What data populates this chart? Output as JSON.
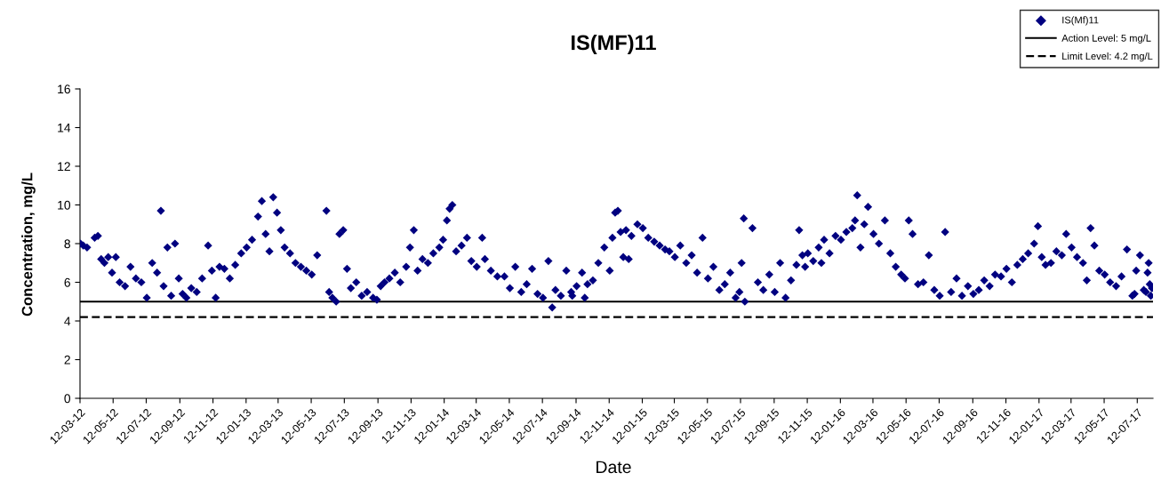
{
  "chart_data": {
    "type": "scatter",
    "title": "IS(MF)11",
    "xlabel": "Date",
    "ylabel": "Concentration, mg/L",
    "marker": "diamond",
    "grid": false,
    "legend": "top right",
    "xlim": [
      "2012-03-12",
      "2017-08-10"
    ],
    "ylim": [
      0,
      16
    ],
    "yticks": [
      0,
      2,
      4,
      6,
      8,
      10,
      12,
      14,
      16
    ],
    "xticks": [
      {
        "value": "2012-03-12",
        "label": "12-03-12"
      },
      {
        "value": "2012-05-12",
        "label": "12-05-12"
      },
      {
        "value": "2012-07-12",
        "label": "12-07-12"
      },
      {
        "value": "2012-09-12",
        "label": "12-09-12"
      },
      {
        "value": "2012-11-12",
        "label": "12-11-12"
      },
      {
        "value": "2013-01-12",
        "label": "12-01-13"
      },
      {
        "value": "2013-03-12",
        "label": "12-03-13"
      },
      {
        "value": "2013-05-12",
        "label": "12-05-13"
      },
      {
        "value": "2013-07-12",
        "label": "12-07-13"
      },
      {
        "value": "2013-09-12",
        "label": "12-09-13"
      },
      {
        "value": "2013-11-12",
        "label": "12-11-13"
      },
      {
        "value": "2014-01-12",
        "label": "12-01-14"
      },
      {
        "value": "2014-03-12",
        "label": "12-03-14"
      },
      {
        "value": "2014-05-12",
        "label": "12-05-14"
      },
      {
        "value": "2014-07-12",
        "label": "12-07-14"
      },
      {
        "value": "2014-09-12",
        "label": "12-09-14"
      },
      {
        "value": "2014-11-12",
        "label": "12-11-14"
      },
      {
        "value": "2015-01-12",
        "label": "12-01-15"
      },
      {
        "value": "2015-03-12",
        "label": "12-03-15"
      },
      {
        "value": "2015-05-12",
        "label": "12-05-15"
      },
      {
        "value": "2015-07-12",
        "label": "12-07-15"
      },
      {
        "value": "2015-09-12",
        "label": "12-09-15"
      },
      {
        "value": "2015-11-12",
        "label": "12-11-15"
      },
      {
        "value": "2016-01-12",
        "label": "12-01-16"
      },
      {
        "value": "2016-03-12",
        "label": "12-03-16"
      },
      {
        "value": "2016-05-12",
        "label": "12-05-16"
      },
      {
        "value": "2016-07-12",
        "label": "12-07-16"
      },
      {
        "value": "2016-09-12",
        "label": "12-09-16"
      },
      {
        "value": "2016-11-12",
        "label": "12-11-16"
      },
      {
        "value": "2017-01-12",
        "label": "12-01-17"
      },
      {
        "value": "2017-03-12",
        "label": "12-03-17"
      },
      {
        "value": "2017-05-12",
        "label": "12-05-17"
      },
      {
        "value": "2017-07-12",
        "label": "12-07-17"
      }
    ],
    "ref_lines": [
      {
        "axis": "y",
        "value": 5,
        "label": "Action Level: 5 mg/L",
        "color": "#000000",
        "line_style": "solid"
      },
      {
        "axis": "y",
        "value": 4.2,
        "label": "Limit Level: 4.2 mg/L",
        "color": "#000000",
        "line_style": "dashed"
      }
    ],
    "series": [
      {
        "name": "IS(Mf)11",
        "color": "#000080",
        "x": [
          "2012-03-13",
          "2012-03-18",
          "2012-03-25",
          "2012-04-08",
          "2012-04-14",
          "2012-04-20",
          "2012-04-26",
          "2012-05-03",
          "2012-05-10",
          "2012-05-17",
          "2012-05-24",
          "2012-06-03",
          "2012-06-13",
          "2012-06-23",
          "2012-07-03",
          "2012-07-13",
          "2012-07-23",
          "2012-08-01",
          "2012-08-08",
          "2012-08-13",
          "2012-08-20",
          "2012-08-27",
          "2012-09-03",
          "2012-09-10",
          "2012-09-17",
          "2012-09-24",
          "2012-10-03",
          "2012-10-13",
          "2012-10-23",
          "2012-11-03",
          "2012-11-10",
          "2012-11-17",
          "2012-11-24",
          "2012-12-03",
          "2012-12-13",
          "2012-12-23",
          "2013-01-03",
          "2013-01-13",
          "2013-01-23",
          "2013-02-03",
          "2013-02-10",
          "2013-02-17",
          "2013-02-24",
          "2013-03-03",
          "2013-03-10",
          "2013-03-17",
          "2013-03-24",
          "2013-04-03",
          "2013-04-13",
          "2013-04-23",
          "2013-05-03",
          "2013-05-13",
          "2013-05-23",
          "2013-06-09",
          "2013-06-14",
          "2013-06-20",
          "2013-06-27",
          "2013-07-03",
          "2013-07-10",
          "2013-07-17",
          "2013-07-24",
          "2013-08-03",
          "2013-08-13",
          "2013-08-23",
          "2013-09-03",
          "2013-09-10",
          "2013-09-17",
          "2013-09-24",
          "2013-10-03",
          "2013-10-13",
          "2013-10-23",
          "2013-11-03",
          "2013-11-10",
          "2013-11-17",
          "2013-11-24",
          "2013-12-03",
          "2013-12-13",
          "2013-12-23",
          "2014-01-03",
          "2014-01-10",
          "2014-01-17",
          "2014-01-22",
          "2014-01-27",
          "2014-02-03",
          "2014-02-13",
          "2014-02-23",
          "2014-03-03",
          "2014-03-13",
          "2014-03-28",
          "2014-03-23",
          "2014-04-08",
          "2014-04-20",
          "2014-05-03",
          "2014-05-13",
          "2014-05-23",
          "2014-06-03",
          "2014-06-13",
          "2014-06-23",
          "2014-07-03",
          "2014-07-13",
          "2014-07-23",
          "2014-08-05",
          "2014-08-15",
          "2014-08-25",
          "2014-07-30",
          "2014-09-03",
          "2014-09-13",
          "2014-09-05",
          "2014-09-23",
          "2014-09-28",
          "2014-10-03",
          "2014-10-13",
          "2014-10-23",
          "2014-11-03",
          "2014-11-13",
          "2014-11-18",
          "2014-11-23",
          "2014-11-28",
          "2014-12-03",
          "2014-12-08",
          "2014-12-18",
          "2014-12-13",
          "2014-12-23",
          "2015-01-03",
          "2015-01-13",
          "2015-01-23",
          "2015-02-03",
          "2015-02-13",
          "2015-02-23",
          "2015-03-03",
          "2015-03-13",
          "2015-03-23",
          "2015-04-03",
          "2015-04-13",
          "2015-04-23",
          "2015-05-03",
          "2015-05-13",
          "2015-05-23",
          "2015-06-03",
          "2015-06-13",
          "2015-06-23",
          "2015-07-03",
          "2015-07-10",
          "2015-07-14",
          "2015-07-20",
          "2015-07-18",
          "2015-08-03",
          "2015-08-13",
          "2015-08-23",
          "2015-09-03",
          "2015-09-13",
          "2015-09-23",
          "2015-10-03",
          "2015-10-13",
          "2015-10-23",
          "2015-10-28",
          "2015-11-03",
          "2015-11-08",
          "2015-12-08",
          "2015-11-13",
          "2015-11-23",
          "2015-12-03",
          "2015-12-13",
          "2015-12-23",
          "2016-01-03",
          "2016-01-13",
          "2016-01-23",
          "2016-02-03",
          "2016-02-08",
          "2016-02-18",
          "2016-02-25",
          "2016-02-12",
          "2016-03-03",
          "2016-03-13",
          "2016-03-23",
          "2016-04-03",
          "2016-04-13",
          "2016-04-23",
          "2016-05-03",
          "2016-05-10",
          "2016-05-17",
          "2016-05-24",
          "2016-06-03",
          "2016-06-13",
          "2016-06-23",
          "2016-07-03",
          "2016-07-13",
          "2016-07-23",
          "2016-08-03",
          "2016-08-13",
          "2016-08-23",
          "2016-09-03",
          "2016-09-13",
          "2016-09-23",
          "2016-10-03",
          "2016-10-13",
          "2016-10-23",
          "2016-11-03",
          "2016-11-13",
          "2016-11-23",
          "2016-12-03",
          "2016-12-13",
          "2016-12-23",
          "2017-01-03",
          "2017-01-10",
          "2017-01-17",
          "2017-01-24",
          "2017-02-03",
          "2017-02-13",
          "2017-02-23",
          "2017-03-03",
          "2017-03-13",
          "2017-03-23",
          "2017-04-03",
          "2017-04-10",
          "2017-04-17",
          "2017-04-24",
          "2017-05-03",
          "2017-05-13",
          "2017-05-23",
          "2017-06-03",
          "2017-06-13",
          "2017-06-23",
          "2017-07-03",
          "2017-07-07",
          "2017-07-10",
          "2017-07-17",
          "2017-07-24",
          "2017-07-28",
          "2017-07-31",
          "2017-08-02",
          "2017-08-04",
          "2017-08-06",
          "2017-08-08"
        ],
        "values": [
          8.0,
          7.9,
          7.8,
          8.3,
          8.4,
          7.2,
          7.0,
          7.3,
          6.5,
          7.3,
          6.0,
          5.8,
          6.8,
          6.2,
          6.0,
          5.2,
          7.0,
          6.5,
          9.7,
          5.8,
          7.8,
          5.3,
          8.0,
          6.2,
          5.4,
          5.2,
          5.7,
          5.5,
          6.2,
          7.9,
          6.6,
          5.2,
          6.8,
          6.7,
          6.2,
          6.9,
          7.5,
          7.8,
          8.2,
          9.4,
          10.2,
          8.5,
          7.6,
          10.4,
          9.6,
          8.7,
          7.8,
          7.5,
          7.0,
          6.8,
          6.6,
          6.4,
          7.4,
          9.7,
          5.5,
          5.2,
          5.0,
          8.5,
          8.7,
          6.7,
          5.7,
          6.0,
          5.3,
          5.5,
          5.2,
          5.1,
          5.8,
          6.0,
          6.2,
          6.5,
          6.0,
          6.8,
          7.8,
          8.7,
          6.6,
          7.2,
          7.0,
          7.5,
          7.8,
          8.2,
          9.2,
          9.8,
          10.0,
          7.6,
          7.9,
          8.3,
          7.1,
          6.8,
          7.2,
          8.3,
          6.6,
          6.3,
          6.3,
          5.7,
          6.8,
          5.5,
          5.9,
          6.7,
          5.4,
          5.2,
          7.1,
          5.6,
          5.3,
          6.6,
          4.7,
          5.5,
          5.8,
          5.3,
          6.5,
          5.2,
          5.9,
          6.1,
          7.0,
          7.8,
          6.6,
          8.3,
          9.6,
          9.7,
          8.6,
          7.3,
          7.2,
          8.7,
          8.4,
          9.0,
          8.8,
          8.3,
          8.1,
          7.9,
          7.7,
          7.6,
          7.3,
          7.9,
          7.0,
          7.4,
          6.5,
          8.3,
          6.2,
          6.8,
          5.6,
          5.9,
          6.5,
          5.2,
          5.5,
          7.0,
          5.0,
          9.3,
          8.8,
          6.0,
          5.6,
          6.4,
          5.5,
          7.0,
          5.2,
          6.1,
          6.9,
          8.7,
          7.4,
          6.8,
          7.0,
          7.5,
          7.1,
          7.8,
          8.2,
          7.5,
          8.4,
          8.2,
          8.6,
          8.8,
          9.2,
          7.8,
          9.0,
          10.5,
          9.9,
          8.5,
          8.0,
          9.2,
          7.5,
          6.8,
          6.4,
          6.2,
          9.2,
          8.5,
          5.9,
          6.0,
          7.4,
          5.6,
          5.3,
          8.6,
          5.5,
          6.2,
          5.3,
          5.8,
          5.4,
          5.6,
          6.1,
          5.8,
          6.4,
          6.3,
          6.7,
          6.0,
          6.9,
          7.2,
          7.5,
          8.0,
          8.9,
          7.3,
          6.9,
          7.0,
          7.6,
          7.4,
          8.5,
          7.8,
          7.3,
          7.0,
          6.1,
          8.8,
          7.9,
          6.6,
          6.4,
          6.0,
          5.8,
          6.3,
          7.7,
          5.3,
          5.4,
          6.6,
          7.4,
          5.6,
          5.5,
          6.5,
          7.0,
          5.9,
          5.3,
          5.7
        ]
      }
    ]
  }
}
